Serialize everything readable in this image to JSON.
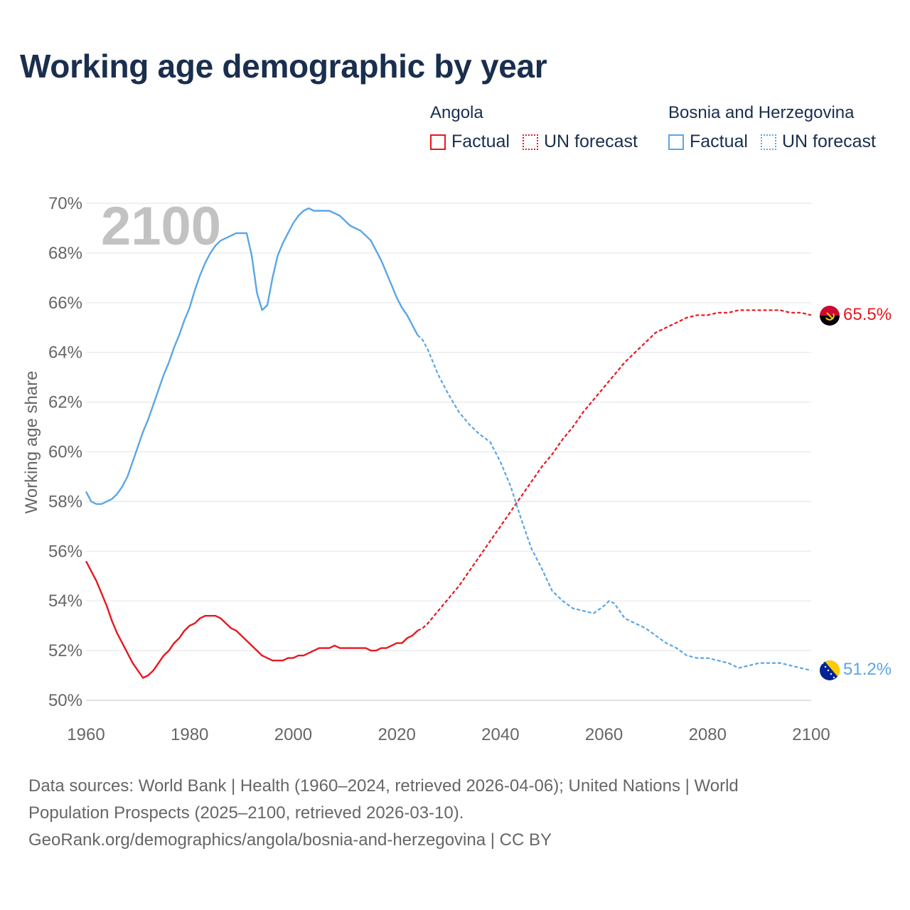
{
  "title": "Working age demographic by year",
  "legend": {
    "groups": [
      {
        "name": "Angola",
        "color": "#e8171f",
        "factual_label": "Factual",
        "forecast_label": "UN forecast"
      },
      {
        "name": "Bosnia and Herzegovina",
        "color": "#5aa6e6",
        "factual_label": "Factual",
        "forecast_label": "UN forecast"
      }
    ]
  },
  "chart_data": {
    "type": "line",
    "title": "Working age demographic by year",
    "ylabel": "Working age share",
    "xlabel": "",
    "year_label": "2100",
    "x_range": [
      1960,
      2100
    ],
    "ylim": [
      50,
      70
    ],
    "x_ticks": [
      "1960",
      "1980",
      "2000",
      "2020",
      "2040",
      "2060",
      "2080",
      "2100"
    ],
    "y_ticks": [
      "50%",
      "52%",
      "54%",
      "56%",
      "58%",
      "60%",
      "62%",
      "64%",
      "66%",
      "68%",
      "70%"
    ],
    "factual_end_year": 2024,
    "series": [
      {
        "name": "Angola",
        "color": "#e8171f",
        "end_label": "65.5%",
        "flag": "angola-flag",
        "points": [
          [
            1960,
            55.6
          ],
          [
            1961,
            55.2
          ],
          [
            1962,
            54.8
          ],
          [
            1963,
            54.3
          ],
          [
            1964,
            53.8
          ],
          [
            1965,
            53.2
          ],
          [
            1966,
            52.7
          ],
          [
            1967,
            52.3
          ],
          [
            1968,
            51.9
          ],
          [
            1969,
            51.5
          ],
          [
            1970,
            51.2
          ],
          [
            1971,
            50.9
          ],
          [
            1972,
            51.0
          ],
          [
            1973,
            51.2
          ],
          [
            1974,
            51.5
          ],
          [
            1975,
            51.8
          ],
          [
            1976,
            52.0
          ],
          [
            1977,
            52.3
          ],
          [
            1978,
            52.5
          ],
          [
            1979,
            52.8
          ],
          [
            1980,
            53.0
          ],
          [
            1981,
            53.1
          ],
          [
            1982,
            53.3
          ],
          [
            1983,
            53.4
          ],
          [
            1984,
            53.4
          ],
          [
            1985,
            53.4
          ],
          [
            1986,
            53.3
          ],
          [
            1987,
            53.1
          ],
          [
            1988,
            52.9
          ],
          [
            1989,
            52.8
          ],
          [
            1990,
            52.6
          ],
          [
            1991,
            52.4
          ],
          [
            1992,
            52.2
          ],
          [
            1993,
            52.0
          ],
          [
            1994,
            51.8
          ],
          [
            1995,
            51.7
          ],
          [
            1996,
            51.6
          ],
          [
            1997,
            51.6
          ],
          [
            1998,
            51.6
          ],
          [
            1999,
            51.7
          ],
          [
            2000,
            51.7
          ],
          [
            2001,
            51.8
          ],
          [
            2002,
            51.8
          ],
          [
            2003,
            51.9
          ],
          [
            2004,
            52.0
          ],
          [
            2005,
            52.1
          ],
          [
            2006,
            52.1
          ],
          [
            2007,
            52.1
          ],
          [
            2008,
            52.2
          ],
          [
            2009,
            52.1
          ],
          [
            2010,
            52.1
          ],
          [
            2011,
            52.1
          ],
          [
            2012,
            52.1
          ],
          [
            2013,
            52.1
          ],
          [
            2014,
            52.1
          ],
          [
            2015,
            52.0
          ],
          [
            2016,
            52.0
          ],
          [
            2017,
            52.1
          ],
          [
            2018,
            52.1
          ],
          [
            2019,
            52.2
          ],
          [
            2020,
            52.3
          ],
          [
            2021,
            52.3
          ],
          [
            2022,
            52.5
          ],
          [
            2023,
            52.6
          ],
          [
            2024,
            52.8
          ],
          [
            2025,
            52.9
          ],
          [
            2026,
            53.1
          ],
          [
            2028,
            53.6
          ],
          [
            2030,
            54.1
          ],
          [
            2032,
            54.6
          ],
          [
            2034,
            55.2
          ],
          [
            2036,
            55.8
          ],
          [
            2038,
            56.4
          ],
          [
            2040,
            57.0
          ],
          [
            2042,
            57.6
          ],
          [
            2044,
            58.2
          ],
          [
            2046,
            58.8
          ],
          [
            2048,
            59.4
          ],
          [
            2050,
            59.9
          ],
          [
            2052,
            60.5
          ],
          [
            2054,
            61.0
          ],
          [
            2056,
            61.6
          ],
          [
            2058,
            62.1
          ],
          [
            2060,
            62.6
          ],
          [
            2062,
            63.1
          ],
          [
            2064,
            63.6
          ],
          [
            2066,
            64.0
          ],
          [
            2068,
            64.4
          ],
          [
            2070,
            64.8
          ],
          [
            2072,
            65.0
          ],
          [
            2074,
            65.2
          ],
          [
            2076,
            65.4
          ],
          [
            2078,
            65.5
          ],
          [
            2080,
            65.5
          ],
          [
            2082,
            65.6
          ],
          [
            2084,
            65.6
          ],
          [
            2086,
            65.7
          ],
          [
            2088,
            65.7
          ],
          [
            2090,
            65.7
          ],
          [
            2092,
            65.7
          ],
          [
            2094,
            65.7
          ],
          [
            2096,
            65.6
          ],
          [
            2098,
            65.6
          ],
          [
            2100,
            65.5
          ]
        ]
      },
      {
        "name": "Bosnia and Herzegovina",
        "color": "#5aa6e6",
        "end_label": "51.2%",
        "flag": "bosnia-flag",
        "points": [
          [
            1960,
            58.4
          ],
          [
            1961,
            58.0
          ],
          [
            1962,
            57.9
          ],
          [
            1963,
            57.9
          ],
          [
            1964,
            58.0
          ],
          [
            1965,
            58.1
          ],
          [
            1966,
            58.3
          ],
          [
            1967,
            58.6
          ],
          [
            1968,
            59.0
          ],
          [
            1969,
            59.6
          ],
          [
            1970,
            60.2
          ],
          [
            1971,
            60.8
          ],
          [
            1972,
            61.3
          ],
          [
            1973,
            61.9
          ],
          [
            1974,
            62.5
          ],
          [
            1975,
            63.1
          ],
          [
            1976,
            63.6
          ],
          [
            1977,
            64.2
          ],
          [
            1978,
            64.7
          ],
          [
            1979,
            65.3
          ],
          [
            1980,
            65.8
          ],
          [
            1981,
            66.5
          ],
          [
            1982,
            67.1
          ],
          [
            1983,
            67.6
          ],
          [
            1984,
            68.0
          ],
          [
            1985,
            68.3
          ],
          [
            1986,
            68.5
          ],
          [
            1987,
            68.6
          ],
          [
            1988,
            68.7
          ],
          [
            1989,
            68.8
          ],
          [
            1990,
            68.8
          ],
          [
            1991,
            68.8
          ],
          [
            1992,
            67.9
          ],
          [
            1993,
            66.4
          ],
          [
            1994,
            65.7
          ],
          [
            1995,
            65.9
          ],
          [
            1996,
            67.0
          ],
          [
            1997,
            67.9
          ],
          [
            1998,
            68.4
          ],
          [
            1999,
            68.8
          ],
          [
            2000,
            69.2
          ],
          [
            2001,
            69.5
          ],
          [
            2002,
            69.7
          ],
          [
            2003,
            69.8
          ],
          [
            2004,
            69.7
          ],
          [
            2005,
            69.7
          ],
          [
            2006,
            69.7
          ],
          [
            2007,
            69.7
          ],
          [
            2008,
            69.6
          ],
          [
            2009,
            69.5
          ],
          [
            2010,
            69.3
          ],
          [
            2011,
            69.1
          ],
          [
            2012,
            69.0
          ],
          [
            2013,
            68.9
          ],
          [
            2014,
            68.7
          ],
          [
            2015,
            68.5
          ],
          [
            2016,
            68.1
          ],
          [
            2017,
            67.7
          ],
          [
            2018,
            67.2
          ],
          [
            2019,
            66.7
          ],
          [
            2020,
            66.2
          ],
          [
            2021,
            65.8
          ],
          [
            2022,
            65.5
          ],
          [
            2023,
            65.1
          ],
          [
            2024,
            64.7
          ],
          [
            2025,
            64.5
          ],
          [
            2026,
            64.1
          ],
          [
            2028,
            63.1
          ],
          [
            2030,
            62.3
          ],
          [
            2032,
            61.6
          ],
          [
            2034,
            61.1
          ],
          [
            2036,
            60.7
          ],
          [
            2038,
            60.4
          ],
          [
            2040,
            59.6
          ],
          [
            2042,
            58.6
          ],
          [
            2044,
            57.3
          ],
          [
            2046,
            56.1
          ],
          [
            2048,
            55.3
          ],
          [
            2050,
            54.4
          ],
          [
            2052,
            54.0
          ],
          [
            2054,
            53.7
          ],
          [
            2056,
            53.6
          ],
          [
            2058,
            53.5
          ],
          [
            2060,
            53.8
          ],
          [
            2061,
            54.0
          ],
          [
            2062,
            53.9
          ],
          [
            2064,
            53.3
          ],
          [
            2066,
            53.1
          ],
          [
            2068,
            52.9
          ],
          [
            2070,
            52.6
          ],
          [
            2072,
            52.3
          ],
          [
            2074,
            52.1
          ],
          [
            2076,
            51.8
          ],
          [
            2078,
            51.7
          ],
          [
            2080,
            51.7
          ],
          [
            2082,
            51.6
          ],
          [
            2084,
            51.5
          ],
          [
            2086,
            51.3
          ],
          [
            2088,
            51.4
          ],
          [
            2090,
            51.5
          ],
          [
            2092,
            51.5
          ],
          [
            2094,
            51.5
          ],
          [
            2096,
            51.4
          ],
          [
            2098,
            51.3
          ],
          [
            2100,
            51.2
          ]
        ]
      }
    ]
  },
  "sources": {
    "line1": "Data sources: World Bank | Health (1960–2024, retrieved 2026-04-06); United Nations | World",
    "line2": "Population Prospects (2025–2100, retrieved 2026-03-10).",
    "line3": "GeoRank.org/demographics/angola/bosnia-and-herzegovina | CC BY"
  }
}
